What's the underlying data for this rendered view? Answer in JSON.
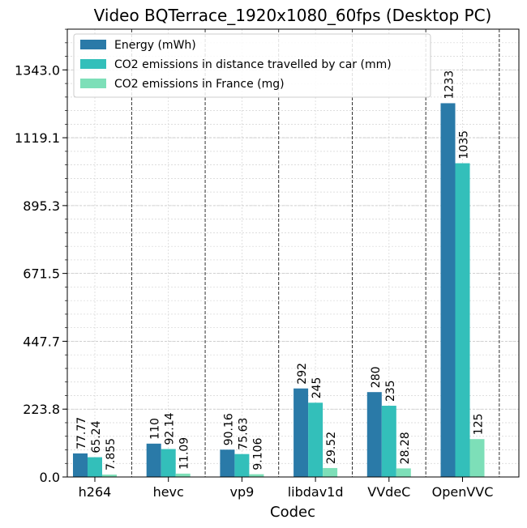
{
  "chart_data": {
    "type": "bar",
    "title": "Video BQTerrace_1920x1080_60fps (Desktop PC)",
    "xlabel": "Codec",
    "ylabel": "",
    "categories": [
      "h264",
      "hevc",
      "vp9",
      "libdav1d",
      "VVdeC",
      "OpenVVC"
    ],
    "series": [
      {
        "name": "Energy (mWh)",
        "color": "#2a7aa8",
        "values": [
          77.77,
          110,
          90.16,
          292,
          280,
          1233
        ],
        "labels": [
          "77.77",
          "110",
          "90.16",
          "292",
          "280",
          "1233"
        ]
      },
      {
        "name": "CO2 emissions in distance travelled by car (mm)",
        "color": "#33bfba",
        "values": [
          65.24,
          92.14,
          75.63,
          245,
          235,
          1035
        ],
        "labels": [
          "65.24",
          "92.14",
          "75.63",
          "245",
          "235",
          "1035"
        ]
      },
      {
        "name": "CO2 emissions in France (mg)",
        "color": "#7ddfb8",
        "values": [
          7.855,
          11.09,
          9.106,
          29.52,
          28.28,
          125
        ],
        "labels": [
          "7.855",
          "11.09",
          "9.106",
          "29.52",
          "28.28",
          "125"
        ]
      }
    ],
    "yticks": [
      "0.0",
      "223.8",
      "447.7",
      "671.5",
      "895.3",
      "1119.1",
      "1343.0"
    ],
    "ylim": [
      0,
      1477.3
    ],
    "grid": true,
    "legend": "top-left"
  }
}
